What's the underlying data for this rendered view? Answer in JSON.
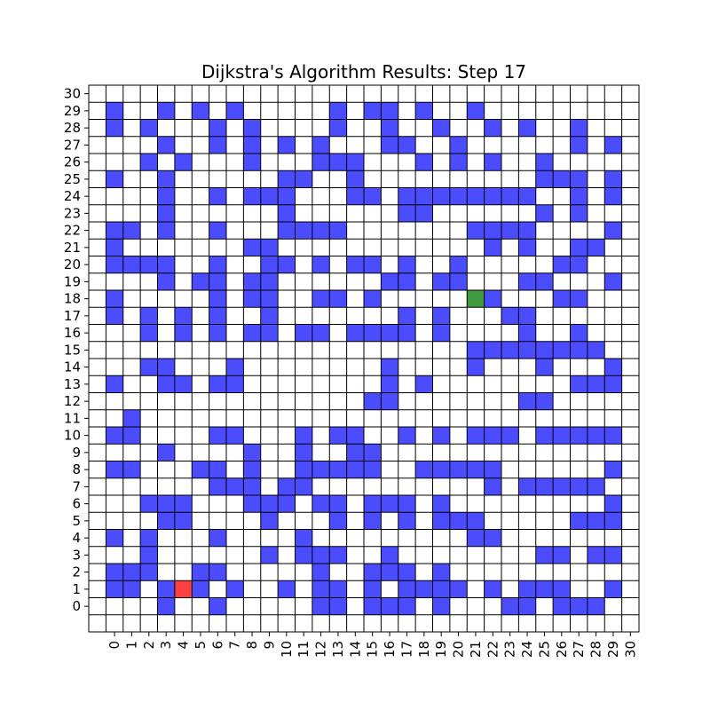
{
  "chart_data": {
    "type": "heatmap",
    "title": "Dijkstra's Algorithm Results: Step 17",
    "grid_size": 31,
    "xlim": [
      -1,
      31
    ],
    "ylim": [
      -1,
      31
    ],
    "x_ticks": [
      "0",
      "1",
      "2",
      "3",
      "4",
      "5",
      "6",
      "7",
      "8",
      "9",
      "10",
      "11",
      "12",
      "13",
      "14",
      "15",
      "16",
      "17",
      "18",
      "19",
      "20",
      "21",
      "22",
      "23",
      "24",
      "25",
      "26",
      "27",
      "28",
      "29",
      "30"
    ],
    "y_ticks": [
      "0",
      "1",
      "2",
      "3",
      "4",
      "5",
      "6",
      "7",
      "8",
      "9",
      "10",
      "11",
      "12",
      "13",
      "14",
      "15",
      "16",
      "17",
      "18",
      "19",
      "20",
      "21",
      "22",
      "23",
      "24",
      "25",
      "26",
      "27",
      "28",
      "29",
      "30"
    ],
    "colors": {
      "obstacle": "#4c4cff",
      "start": "#ff4040",
      "goal": "#3f9a3f",
      "empty": "#ffffff",
      "grid": "#000000"
    },
    "start_cell": [
      4,
      1
    ],
    "goal_cell": [
      21,
      18
    ],
    "obstacles": [
      [
        0,
        29
      ],
      [
        0,
        28
      ],
      [
        3,
        29
      ],
      [
        5,
        29
      ],
      [
        7,
        29
      ],
      [
        13,
        29
      ],
      [
        15,
        29
      ],
      [
        16,
        29
      ],
      [
        18,
        29
      ],
      [
        21,
        29
      ],
      [
        0,
        28
      ],
      [
        2,
        28
      ],
      [
        6,
        28
      ],
      [
        8,
        28
      ],
      [
        13,
        28
      ],
      [
        16,
        28
      ],
      [
        19,
        28
      ],
      [
        22,
        28
      ],
      [
        24,
        28
      ],
      [
        27,
        28
      ],
      [
        3,
        27
      ],
      [
        6,
        27
      ],
      [
        8,
        27
      ],
      [
        10,
        27
      ],
      [
        12,
        27
      ],
      [
        16,
        27
      ],
      [
        17,
        27
      ],
      [
        20,
        27
      ],
      [
        27,
        27
      ],
      [
        29,
        27
      ],
      [
        2,
        26
      ],
      [
        4,
        26
      ],
      [
        8,
        26
      ],
      [
        12,
        26
      ],
      [
        13,
        26
      ],
      [
        14,
        26
      ],
      [
        18,
        26
      ],
      [
        20,
        26
      ],
      [
        22,
        26
      ],
      [
        25,
        26
      ],
      [
        0,
        25
      ],
      [
        3,
        25
      ],
      [
        10,
        25
      ],
      [
        11,
        25
      ],
      [
        14,
        25
      ],
      [
        25,
        25
      ],
      [
        26,
        25
      ],
      [
        27,
        25
      ],
      [
        29,
        25
      ],
      [
        3,
        24
      ],
      [
        6,
        24
      ],
      [
        8,
        24
      ],
      [
        9,
        24
      ],
      [
        10,
        24
      ],
      [
        14,
        24
      ],
      [
        15,
        24
      ],
      [
        17,
        24
      ],
      [
        18,
        24
      ],
      [
        19,
        24
      ],
      [
        20,
        24
      ],
      [
        21,
        24
      ],
      [
        22,
        24
      ],
      [
        23,
        24
      ],
      [
        24,
        24
      ],
      [
        27,
        24
      ],
      [
        29,
        24
      ],
      [
        3,
        23
      ],
      [
        10,
        23
      ],
      [
        17,
        23
      ],
      [
        18,
        23
      ],
      [
        25,
        23
      ],
      [
        27,
        23
      ],
      [
        0,
        22
      ],
      [
        1,
        22
      ],
      [
        3,
        22
      ],
      [
        6,
        22
      ],
      [
        10,
        22
      ],
      [
        11,
        22
      ],
      [
        12,
        22
      ],
      [
        13,
        22
      ],
      [
        21,
        22
      ],
      [
        22,
        22
      ],
      [
        23,
        22
      ],
      [
        24,
        22
      ],
      [
        29,
        22
      ],
      [
        0,
        21
      ],
      [
        8,
        21
      ],
      [
        9,
        21
      ],
      [
        22,
        21
      ],
      [
        24,
        21
      ],
      [
        27,
        21
      ],
      [
        28,
        21
      ],
      [
        0,
        20
      ],
      [
        1,
        20
      ],
      [
        2,
        20
      ],
      [
        3,
        20
      ],
      [
        6,
        20
      ],
      [
        9,
        20
      ],
      [
        10,
        20
      ],
      [
        12,
        20
      ],
      [
        14,
        20
      ],
      [
        15,
        20
      ],
      [
        17,
        20
      ],
      [
        20,
        20
      ],
      [
        26,
        20
      ],
      [
        27,
        20
      ],
      [
        3,
        19
      ],
      [
        5,
        19
      ],
      [
        6,
        19
      ],
      [
        8,
        19
      ],
      [
        9,
        19
      ],
      [
        16,
        19
      ],
      [
        17,
        19
      ],
      [
        19,
        19
      ],
      [
        20,
        19
      ],
      [
        24,
        19
      ],
      [
        25,
        19
      ],
      [
        29,
        19
      ],
      [
        0,
        18
      ],
      [
        6,
        18
      ],
      [
        8,
        18
      ],
      [
        9,
        18
      ],
      [
        12,
        18
      ],
      [
        13,
        18
      ],
      [
        15,
        18
      ],
      [
        22,
        18
      ],
      [
        26,
        18
      ],
      [
        27,
        18
      ],
      [
        0,
        17
      ],
      [
        2,
        17
      ],
      [
        4,
        17
      ],
      [
        6,
        17
      ],
      [
        9,
        17
      ],
      [
        17,
        17
      ],
      [
        19,
        17
      ],
      [
        23,
        17
      ],
      [
        24,
        17
      ],
      [
        2,
        16
      ],
      [
        4,
        16
      ],
      [
        6,
        16
      ],
      [
        8,
        16
      ],
      [
        9,
        16
      ],
      [
        11,
        16
      ],
      [
        12,
        16
      ],
      [
        14,
        16
      ],
      [
        15,
        16
      ],
      [
        16,
        16
      ],
      [
        17,
        16
      ],
      [
        19,
        16
      ],
      [
        24,
        16
      ],
      [
        27,
        16
      ],
      [
        21,
        15
      ],
      [
        22,
        15
      ],
      [
        23,
        15
      ],
      [
        24,
        15
      ],
      [
        25,
        15
      ],
      [
        26,
        15
      ],
      [
        27,
        15
      ],
      [
        28,
        15
      ],
      [
        2,
        14
      ],
      [
        3,
        14
      ],
      [
        7,
        14
      ],
      [
        16,
        14
      ],
      [
        21,
        14
      ],
      [
        25,
        14
      ],
      [
        29,
        14
      ],
      [
        0,
        13
      ],
      [
        3,
        13
      ],
      [
        4,
        13
      ],
      [
        6,
        13
      ],
      [
        7,
        13
      ],
      [
        16,
        13
      ],
      [
        18,
        13
      ],
      [
        27,
        13
      ],
      [
        28,
        13
      ],
      [
        29,
        13
      ],
      [
        15,
        12
      ],
      [
        16,
        12
      ],
      [
        24,
        12
      ],
      [
        25,
        12
      ],
      [
        1,
        11
      ],
      [
        0,
        10
      ],
      [
        1,
        10
      ],
      [
        6,
        10
      ],
      [
        7,
        10
      ],
      [
        11,
        10
      ],
      [
        13,
        10
      ],
      [
        14,
        10
      ],
      [
        17,
        10
      ],
      [
        19,
        10
      ],
      [
        21,
        10
      ],
      [
        22,
        10
      ],
      [
        23,
        10
      ],
      [
        25,
        10
      ],
      [
        26,
        10
      ],
      [
        27,
        10
      ],
      [
        28,
        10
      ],
      [
        29,
        10
      ],
      [
        3,
        9
      ],
      [
        8,
        9
      ],
      [
        11,
        9
      ],
      [
        14,
        9
      ],
      [
        15,
        9
      ],
      [
        0,
        8
      ],
      [
        1,
        8
      ],
      [
        5,
        8
      ],
      [
        6,
        8
      ],
      [
        8,
        8
      ],
      [
        11,
        8
      ],
      [
        12,
        8
      ],
      [
        13,
        8
      ],
      [
        14,
        8
      ],
      [
        15,
        8
      ],
      [
        18,
        8
      ],
      [
        19,
        8
      ],
      [
        20,
        8
      ],
      [
        21,
        8
      ],
      [
        22,
        8
      ],
      [
        29,
        8
      ],
      [
        6,
        7
      ],
      [
        7,
        7
      ],
      [
        8,
        7
      ],
      [
        10,
        7
      ],
      [
        11,
        7
      ],
      [
        22,
        7
      ],
      [
        24,
        7
      ],
      [
        25,
        7
      ],
      [
        26,
        7
      ],
      [
        27,
        7
      ],
      [
        28,
        7
      ],
      [
        2,
        6
      ],
      [
        3,
        6
      ],
      [
        4,
        6
      ],
      [
        8,
        6
      ],
      [
        9,
        6
      ],
      [
        10,
        6
      ],
      [
        12,
        6
      ],
      [
        13,
        6
      ],
      [
        15,
        6
      ],
      [
        16,
        6
      ],
      [
        17,
        6
      ],
      [
        19,
        6
      ],
      [
        29,
        6
      ],
      [
        3,
        5
      ],
      [
        4,
        5
      ],
      [
        9,
        5
      ],
      [
        13,
        5
      ],
      [
        15,
        5
      ],
      [
        17,
        5
      ],
      [
        19,
        5
      ],
      [
        20,
        5
      ],
      [
        21,
        5
      ],
      [
        27,
        5
      ],
      [
        28,
        5
      ],
      [
        29,
        5
      ],
      [
        0,
        4
      ],
      [
        2,
        4
      ],
      [
        6,
        4
      ],
      [
        11,
        4
      ],
      [
        21,
        4
      ],
      [
        22,
        4
      ],
      [
        2,
        3
      ],
      [
        9,
        3
      ],
      [
        11,
        3
      ],
      [
        12,
        3
      ],
      [
        13,
        3
      ],
      [
        16,
        3
      ],
      [
        25,
        3
      ],
      [
        26,
        3
      ],
      [
        28,
        3
      ],
      [
        29,
        3
      ],
      [
        0,
        2
      ],
      [
        1,
        2
      ],
      [
        2,
        2
      ],
      [
        5,
        2
      ],
      [
        6,
        2
      ],
      [
        12,
        2
      ],
      [
        15,
        2
      ],
      [
        16,
        2
      ],
      [
        17,
        2
      ],
      [
        19,
        2
      ],
      [
        7,
        1
      ],
      [
        10,
        1
      ],
      [
        17,
        1
      ],
      [
        18,
        1
      ],
      [
        19,
        1
      ],
      [
        20,
        1
      ],
      [
        22,
        1
      ],
      [
        24,
        1
      ],
      [
        25,
        1
      ],
      [
        26,
        1
      ],
      [
        29,
        1
      ],
      [
        0,
        1
      ],
      [
        1,
        1
      ],
      [
        3,
        1
      ],
      [
        5,
        1
      ],
      [
        12,
        1
      ],
      [
        13,
        1
      ],
      [
        15,
        1
      ],
      [
        20,
        1
      ],
      [
        22,
        1
      ],
      [
        3,
        0
      ],
      [
        6,
        0
      ],
      [
        12,
        0
      ],
      [
        13,
        0
      ],
      [
        15,
        0
      ],
      [
        16,
        0
      ],
      [
        17,
        0
      ],
      [
        19,
        0
      ],
      [
        23,
        0
      ],
      [
        24,
        0
      ],
      [
        26,
        0
      ],
      [
        27,
        0
      ],
      [
        28,
        0
      ]
    ]
  }
}
